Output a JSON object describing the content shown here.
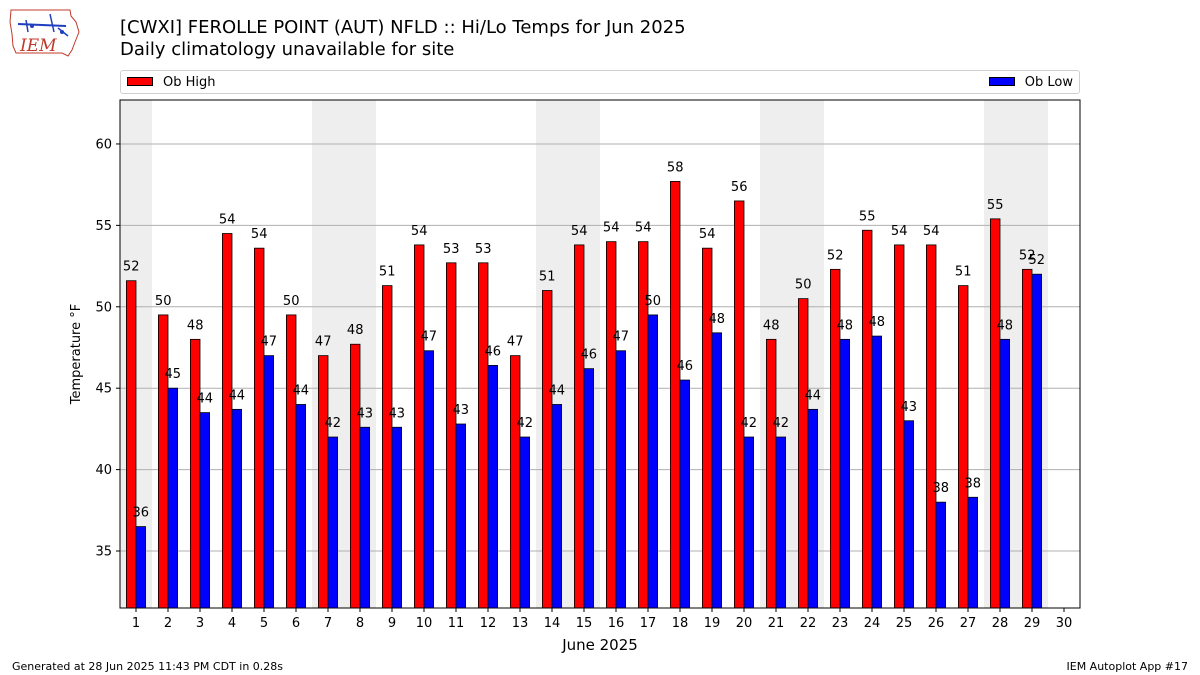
{
  "logo": {
    "text": "IEM"
  },
  "header": {
    "title": "[CWXI] FEROLLE POINT (AUT)  NFLD :: Hi/Lo Temps for Jun 2025",
    "subtitle": "Daily climatology unavailable for site"
  },
  "legend": {
    "high_label": "Ob High",
    "low_label": "Ob Low"
  },
  "colors": {
    "high": "#ff0000",
    "low": "#0000ff",
    "weekend_band": "#eeeeee",
    "grid": "#b0b0b0"
  },
  "chart_data": {
    "type": "bar",
    "xlabel": "June 2025",
    "ylabel": "Temperature °F",
    "ylim": [
      31.5,
      62.7
    ],
    "yticks": [
      35,
      40,
      45,
      50,
      55,
      60
    ],
    "grid": "horizontal",
    "legend_placement": "top",
    "categories": [
      "1",
      "2",
      "3",
      "4",
      "5",
      "6",
      "7",
      "8",
      "9",
      "10",
      "11",
      "12",
      "13",
      "14",
      "15",
      "16",
      "17",
      "18",
      "19",
      "20",
      "21",
      "22",
      "23",
      "24",
      "25",
      "26",
      "27",
      "28",
      "29",
      "30"
    ],
    "series": [
      {
        "name": "Ob High",
        "values": [
          51.6,
          49.5,
          48.0,
          54.5,
          53.6,
          49.5,
          47.0,
          47.7,
          51.3,
          53.8,
          52.7,
          52.7,
          47.0,
          51.0,
          53.8,
          54.0,
          54.0,
          57.7,
          53.6,
          56.5,
          48.0,
          50.5,
          52.3,
          54.7,
          53.8,
          53.8,
          51.3,
          55.4,
          52.3,
          null
        ],
        "labels": [
          "52",
          "50",
          "48",
          "54",
          "54",
          "50",
          "47",
          "48",
          "51",
          "54",
          "53",
          "53",
          "47",
          "51",
          "54",
          "54",
          "54",
          "58",
          "54",
          "56",
          "48",
          "50",
          "52",
          "55",
          "54",
          "54",
          "51",
          "55",
          "52",
          ""
        ]
      },
      {
        "name": "Ob Low",
        "values": [
          36.5,
          45.0,
          43.5,
          43.7,
          47.0,
          44.0,
          42.0,
          42.6,
          42.6,
          47.3,
          42.8,
          46.4,
          42.0,
          44.0,
          46.2,
          47.3,
          49.5,
          45.5,
          48.4,
          42.0,
          42.0,
          43.7,
          48.0,
          48.2,
          43.0,
          38.0,
          38.3,
          48.0,
          52.0,
          null
        ],
        "labels": [
          "36",
          "45",
          "44",
          "44",
          "47",
          "44",
          "42",
          "43",
          "43",
          "47",
          "43",
          "46",
          "42",
          "44",
          "46",
          "47",
          "50",
          "46",
          "48",
          "42",
          "42",
          "44",
          "48",
          "48",
          "43",
          "38",
          "38",
          "48",
          "52",
          ""
        ]
      }
    ],
    "weekend_days": [
      1,
      7,
      8,
      14,
      15,
      21,
      22,
      28,
      29
    ]
  },
  "footer": {
    "generated": "Generated at 28 Jun 2025 11:43 PM CDT in 0.28s",
    "app": "IEM Autoplot App #17"
  }
}
